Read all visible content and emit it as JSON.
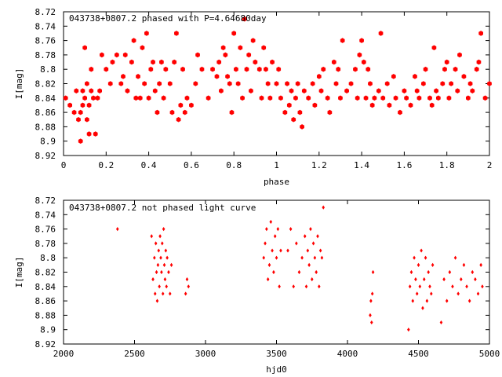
{
  "chart_data": [
    {
      "type": "scatter",
      "title": "043738+0807.2 phased with P=4.64680day",
      "xlabel": "phase",
      "ylabel": "I[mag]",
      "xlim": [
        0,
        2
      ],
      "ylim": [
        8.92,
        8.72
      ],
      "y_inverted": true,
      "grid": false,
      "marker_color": "#ff0000",
      "marker": "filled-hexagon",
      "xticks": [
        0,
        0.2,
        0.4,
        0.6,
        0.8,
        1,
        1.2,
        1.4,
        1.6,
        1.8,
        2
      ],
      "xtick_labels": [
        "0",
        "0.2",
        "0.4",
        "0.6",
        "0.8",
        "1",
        "1.2",
        "1.4",
        "1.6",
        "1.8",
        "2"
      ],
      "yticks": [
        8.72,
        8.74,
        8.76,
        8.78,
        8.8,
        8.82,
        8.84,
        8.86,
        8.88,
        8.9,
        8.92
      ],
      "ytick_labels": [
        "8.72",
        "8.74",
        "8.76",
        "8.78",
        "8.8",
        "8.82",
        "8.84",
        "8.86",
        "8.88",
        "8.9",
        "8.92"
      ],
      "series": [
        {
          "x": [
            0.01,
            0.03,
            0.05,
            0.06,
            0.07,
            0.08,
            0.08,
            0.09,
            0.09,
            0.1,
            0.1,
            0.11,
            0.11,
            0.12,
            0.12,
            0.13,
            0.13,
            0.14,
            0.15,
            0.16,
            0.17,
            0.18,
            0.2,
            0.22,
            0.23,
            0.25,
            0.27,
            0.28,
            0.29,
            0.3,
            0.32,
            0.33,
            0.34,
            0.35,
            0.36,
            0.37,
            0.38,
            0.39,
            0.4,
            0.41,
            0.42,
            0.43,
            0.44,
            0.45,
            0.46,
            0.47,
            0.48,
            0.5,
            0.51,
            0.52,
            0.53,
            0.54,
            0.55,
            0.56,
            0.57,
            0.58,
            0.6,
            0.62,
            0.63,
            0.65,
            0.68,
            0.7,
            0.72,
            0.73,
            0.74,
            0.75,
            0.76,
            0.77,
            0.78,
            0.79,
            0.8,
            0.81,
            0.82,
            0.83,
            0.84,
            0.85,
            0.86,
            0.87,
            0.88,
            0.89,
            0.9,
            0.92,
            0.93,
            0.94,
            0.95,
            0.96,
            0.97,
            0.98,
            1.0,
            1.01,
            1.02,
            1.04,
            1.05,
            1.06,
            1.07,
            1.08,
            1.09,
            1.1,
            1.11,
            1.12,
            1.13,
            1.15,
            1.17,
            1.18,
            1.2,
            1.21,
            1.22,
            1.24,
            1.25,
            1.27,
            1.28,
            1.29,
            1.3,
            1.31,
            1.33,
            1.35,
            1.37,
            1.38,
            1.39,
            1.4,
            1.41,
            1.42,
            1.43,
            1.44,
            1.45,
            1.46,
            1.48,
            1.49,
            1.5,
            1.52,
            1.53,
            1.55,
            1.56,
            1.58,
            1.6,
            1.61,
            1.63,
            1.65,
            1.66,
            1.67,
            1.69,
            1.7,
            1.72,
            1.73,
            1.74,
            1.75,
            1.76,
            1.78,
            1.79,
            1.8,
            1.81,
            1.82,
            1.84,
            1.85,
            1.86,
            1.88,
            1.9,
            1.91,
            1.92,
            1.94,
            1.95,
            1.96,
            1.98,
            2.0
          ],
          "y": [
            8.84,
            8.85,
            8.86,
            8.83,
            8.87,
            8.9,
            8.86,
            8.85,
            8.83,
            8.77,
            8.84,
            8.82,
            8.87,
            8.89,
            8.85,
            8.83,
            8.8,
            8.84,
            8.89,
            8.84,
            8.83,
            8.78,
            8.8,
            8.82,
            8.79,
            8.78,
            8.82,
            8.81,
            8.78,
            8.83,
            8.79,
            8.76,
            8.84,
            8.81,
            8.84,
            8.77,
            8.82,
            8.75,
            8.84,
            8.8,
            8.79,
            8.83,
            8.86,
            8.82,
            8.79,
            8.84,
            8.8,
            8.82,
            8.86,
            8.79,
            8.75,
            8.87,
            8.85,
            8.8,
            8.86,
            8.84,
            8.85,
            8.82,
            8.78,
            8.8,
            8.84,
            8.8,
            8.81,
            8.79,
            8.83,
            8.77,
            8.78,
            8.81,
            8.82,
            8.86,
            8.75,
            8.8,
            8.82,
            8.77,
            8.84,
            8.73,
            8.8,
            8.78,
            8.83,
            8.76,
            8.79,
            8.8,
            8.84,
            8.77,
            8.8,
            8.82,
            8.84,
            8.79,
            8.82,
            8.8,
            8.84,
            8.86,
            8.82,
            8.85,
            8.83,
            8.87,
            8.84,
            8.82,
            8.86,
            8.88,
            8.83,
            8.84,
            8.82,
            8.85,
            8.81,
            8.83,
            8.8,
            8.84,
            8.86,
            8.79,
            8.82,
            8.8,
            8.84,
            8.76,
            8.83,
            8.82,
            8.8,
            8.84,
            8.78,
            8.76,
            8.79,
            8.84,
            8.8,
            8.82,
            8.85,
            8.84,
            8.83,
            8.75,
            8.84,
            8.82,
            8.85,
            8.81,
            8.84,
            8.86,
            8.83,
            8.84,
            8.85,
            8.81,
            8.83,
            8.84,
            8.82,
            8.8,
            8.84,
            8.85,
            8.77,
            8.83,
            8.84,
            8.82,
            8.8,
            8.79,
            8.84,
            8.82,
            8.8,
            8.83,
            8.78,
            8.81,
            8.84,
            8.82,
            8.83,
            8.8,
            8.79,
            8.75,
            8.84,
            8.82
          ],
          "name": ""
        }
      ]
    },
    {
      "type": "scatter",
      "title": "043738+0807.2 not phased light curve",
      "xlabel": "hjd0",
      "ylabel": "I[mag]",
      "xlim": [
        2000,
        5000
      ],
      "ylim": [
        8.92,
        8.72
      ],
      "y_inverted": true,
      "grid": false,
      "marker_color": "#ff0000",
      "marker": "small-diamond",
      "xticks": [
        2000,
        2500,
        3000,
        3500,
        4000,
        4500,
        5000
      ],
      "xtick_labels": [
        "2000",
        "2500",
        "3000",
        "3500",
        "4000",
        "4500",
        "5000"
      ],
      "yticks": [
        8.72,
        8.74,
        8.76,
        8.78,
        8.8,
        8.82,
        8.84,
        8.86,
        8.88,
        8.9,
        8.92
      ],
      "ytick_labels": [
        "8.72",
        "8.74",
        "8.76",
        "8.78",
        "8.8",
        "8.82",
        "8.84",
        "8.86",
        "8.88",
        "8.9",
        "8.92"
      ],
      "series": [
        {
          "x": [
            2380,
            2620,
            2630,
            2640,
            2645,
            2650,
            2655,
            2660,
            2665,
            2670,
            2675,
            2680,
            2685,
            2690,
            2695,
            2700,
            2705,
            2710,
            2715,
            2720,
            2725,
            2730,
            2740,
            2750,
            2760,
            2860,
            2870,
            2880,
            3410,
            3420,
            3430,
            3440,
            3450,
            3460,
            3470,
            3480,
            3490,
            3500,
            3510,
            3520,
            3530,
            3580,
            3600,
            3620,
            3640,
            3660,
            3680,
            3700,
            3710,
            3720,
            3730,
            3740,
            3750,
            3760,
            3770,
            3780,
            3790,
            3800,
            3810,
            3820,
            3830,
            4160,
            4165,
            4170,
            4175,
            4180,
            4430,
            4440,
            4450,
            4460,
            4470,
            4480,
            4490,
            4500,
            4510,
            4520,
            4530,
            4540,
            4550,
            4560,
            4570,
            4580,
            4590,
            4600,
            4660,
            4680,
            4700,
            4720,
            4740,
            4760,
            4780,
            4800,
            4820,
            4840,
            4860,
            4880,
            4900,
            4920,
            4940,
            4950
          ],
          "y": [
            8.76,
            8.77,
            8.83,
            8.8,
            8.85,
            8.78,
            8.82,
            8.86,
            8.81,
            8.79,
            8.84,
            8.77,
            8.8,
            8.82,
            8.78,
            8.85,
            8.76,
            8.81,
            8.83,
            8.79,
            8.84,
            8.8,
            8.82,
            8.85,
            8.81,
            8.85,
            8.83,
            8.84,
            8.8,
            8.78,
            8.76,
            8.83,
            8.81,
            8.75,
            8.79,
            8.82,
            8.77,
            8.8,
            8.76,
            8.84,
            8.79,
            8.79,
            8.76,
            8.84,
            8.78,
            8.82,
            8.8,
            8.77,
            8.84,
            8.79,
            8.81,
            8.76,
            8.83,
            8.78,
            8.8,
            8.82,
            8.77,
            8.84,
            8.79,
            8.8,
            8.73,
            8.88,
            8.86,
            8.89,
            8.85,
            8.82,
            8.9,
            8.84,
            8.82,
            8.86,
            8.8,
            8.83,
            8.85,
            8.81,
            8.84,
            8.79,
            8.87,
            8.83,
            8.8,
            8.86,
            8.82,
            8.84,
            8.85,
            8.81,
            8.89,
            8.83,
            8.86,
            8.82,
            8.84,
            8.8,
            8.85,
            8.83,
            8.81,
            8.84,
            8.86,
            8.82,
            8.83,
            8.85,
            8.81,
            8.84
          ],
          "name": ""
        }
      ]
    }
  ]
}
